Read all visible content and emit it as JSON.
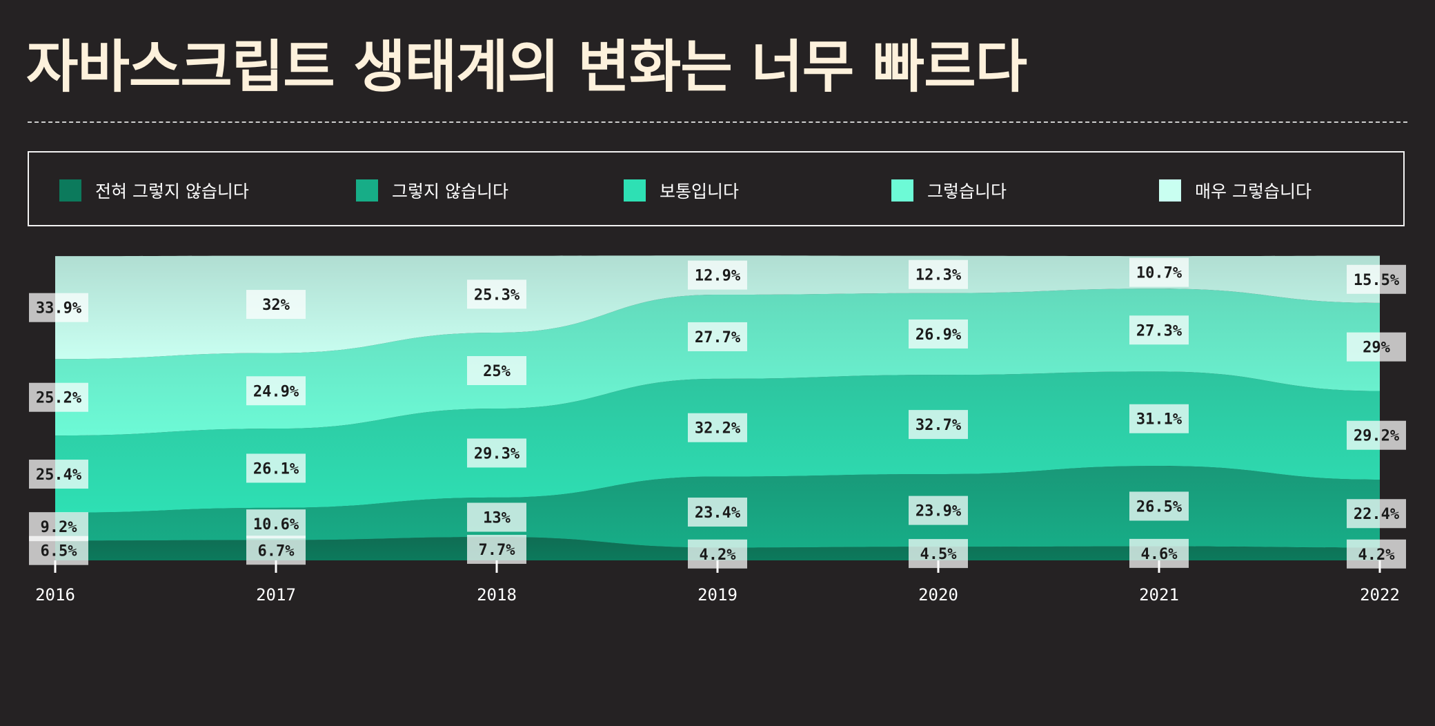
{
  "title": "자바스크립트 생태계의 변화는 너무 빠르다",
  "legend": [
    {
      "label": "전혀 그렇지 않습니다",
      "color": "#0c7a5c"
    },
    {
      "label": "그렇지 않습니다",
      "color": "#17ad87"
    },
    {
      "label": "보통입니다",
      "color": "#2ee0b4"
    },
    {
      "label": "그렇습니다",
      "color": "#6dfad6"
    },
    {
      "label": "매우 그렇습니다",
      "color": "#c9fff1"
    }
  ],
  "chart_data": {
    "type": "area",
    "stacked": true,
    "normalized": true,
    "x": [
      "2016",
      "2017",
      "2018",
      "2019",
      "2020",
      "2021",
      "2022"
    ],
    "series": [
      {
        "name": "전혀 그렇지 않습니다",
        "color": "#0c7a5c",
        "values": [
          6.5,
          6.7,
          7.7,
          4.2,
          4.5,
          4.6,
          4.2
        ],
        "labels": [
          "6.5%",
          "6.7%",
          "7.7%",
          "4.2%",
          "4.5%",
          "4.6%",
          "4.2%"
        ]
      },
      {
        "name": "그렇지 않습니다",
        "color": "#17ad87",
        "values": [
          9.2,
          10.6,
          13,
          23.4,
          23.9,
          26.5,
          22.4
        ],
        "labels": [
          "9.2%",
          "10.6%",
          "13%",
          "23.4%",
          "23.9%",
          "26.5%",
          "22.4%"
        ]
      },
      {
        "name": "보통입니다",
        "color": "#2ee0b4",
        "values": [
          25.4,
          26.1,
          29.3,
          32.2,
          32.7,
          31.1,
          29.2
        ],
        "labels": [
          "25.4%",
          "26.1%",
          "29.3%",
          "32.2%",
          "32.7%",
          "31.1%",
          "29.2%"
        ]
      },
      {
        "name": "그렇습니다",
        "color": "#6dfad6",
        "values": [
          25.2,
          24.9,
          25,
          27.7,
          26.9,
          27.3,
          29
        ],
        "labels": [
          "25.2%",
          "24.9%",
          "25%",
          "27.7%",
          "26.9%",
          "27.3%",
          "29%"
        ]
      },
      {
        "name": "매우 그렇습니다",
        "color": "#c9fff1",
        "values": [
          33.9,
          32,
          25.3,
          12.9,
          12.3,
          10.7,
          15.5
        ],
        "labels": [
          "33.9%",
          "32%",
          "25.3%",
          "12.9%",
          "12.3%",
          "10.7%",
          "15.5%"
        ]
      }
    ],
    "ylim": [
      0,
      100
    ],
    "grid": false,
    "legend_position": "top"
  }
}
